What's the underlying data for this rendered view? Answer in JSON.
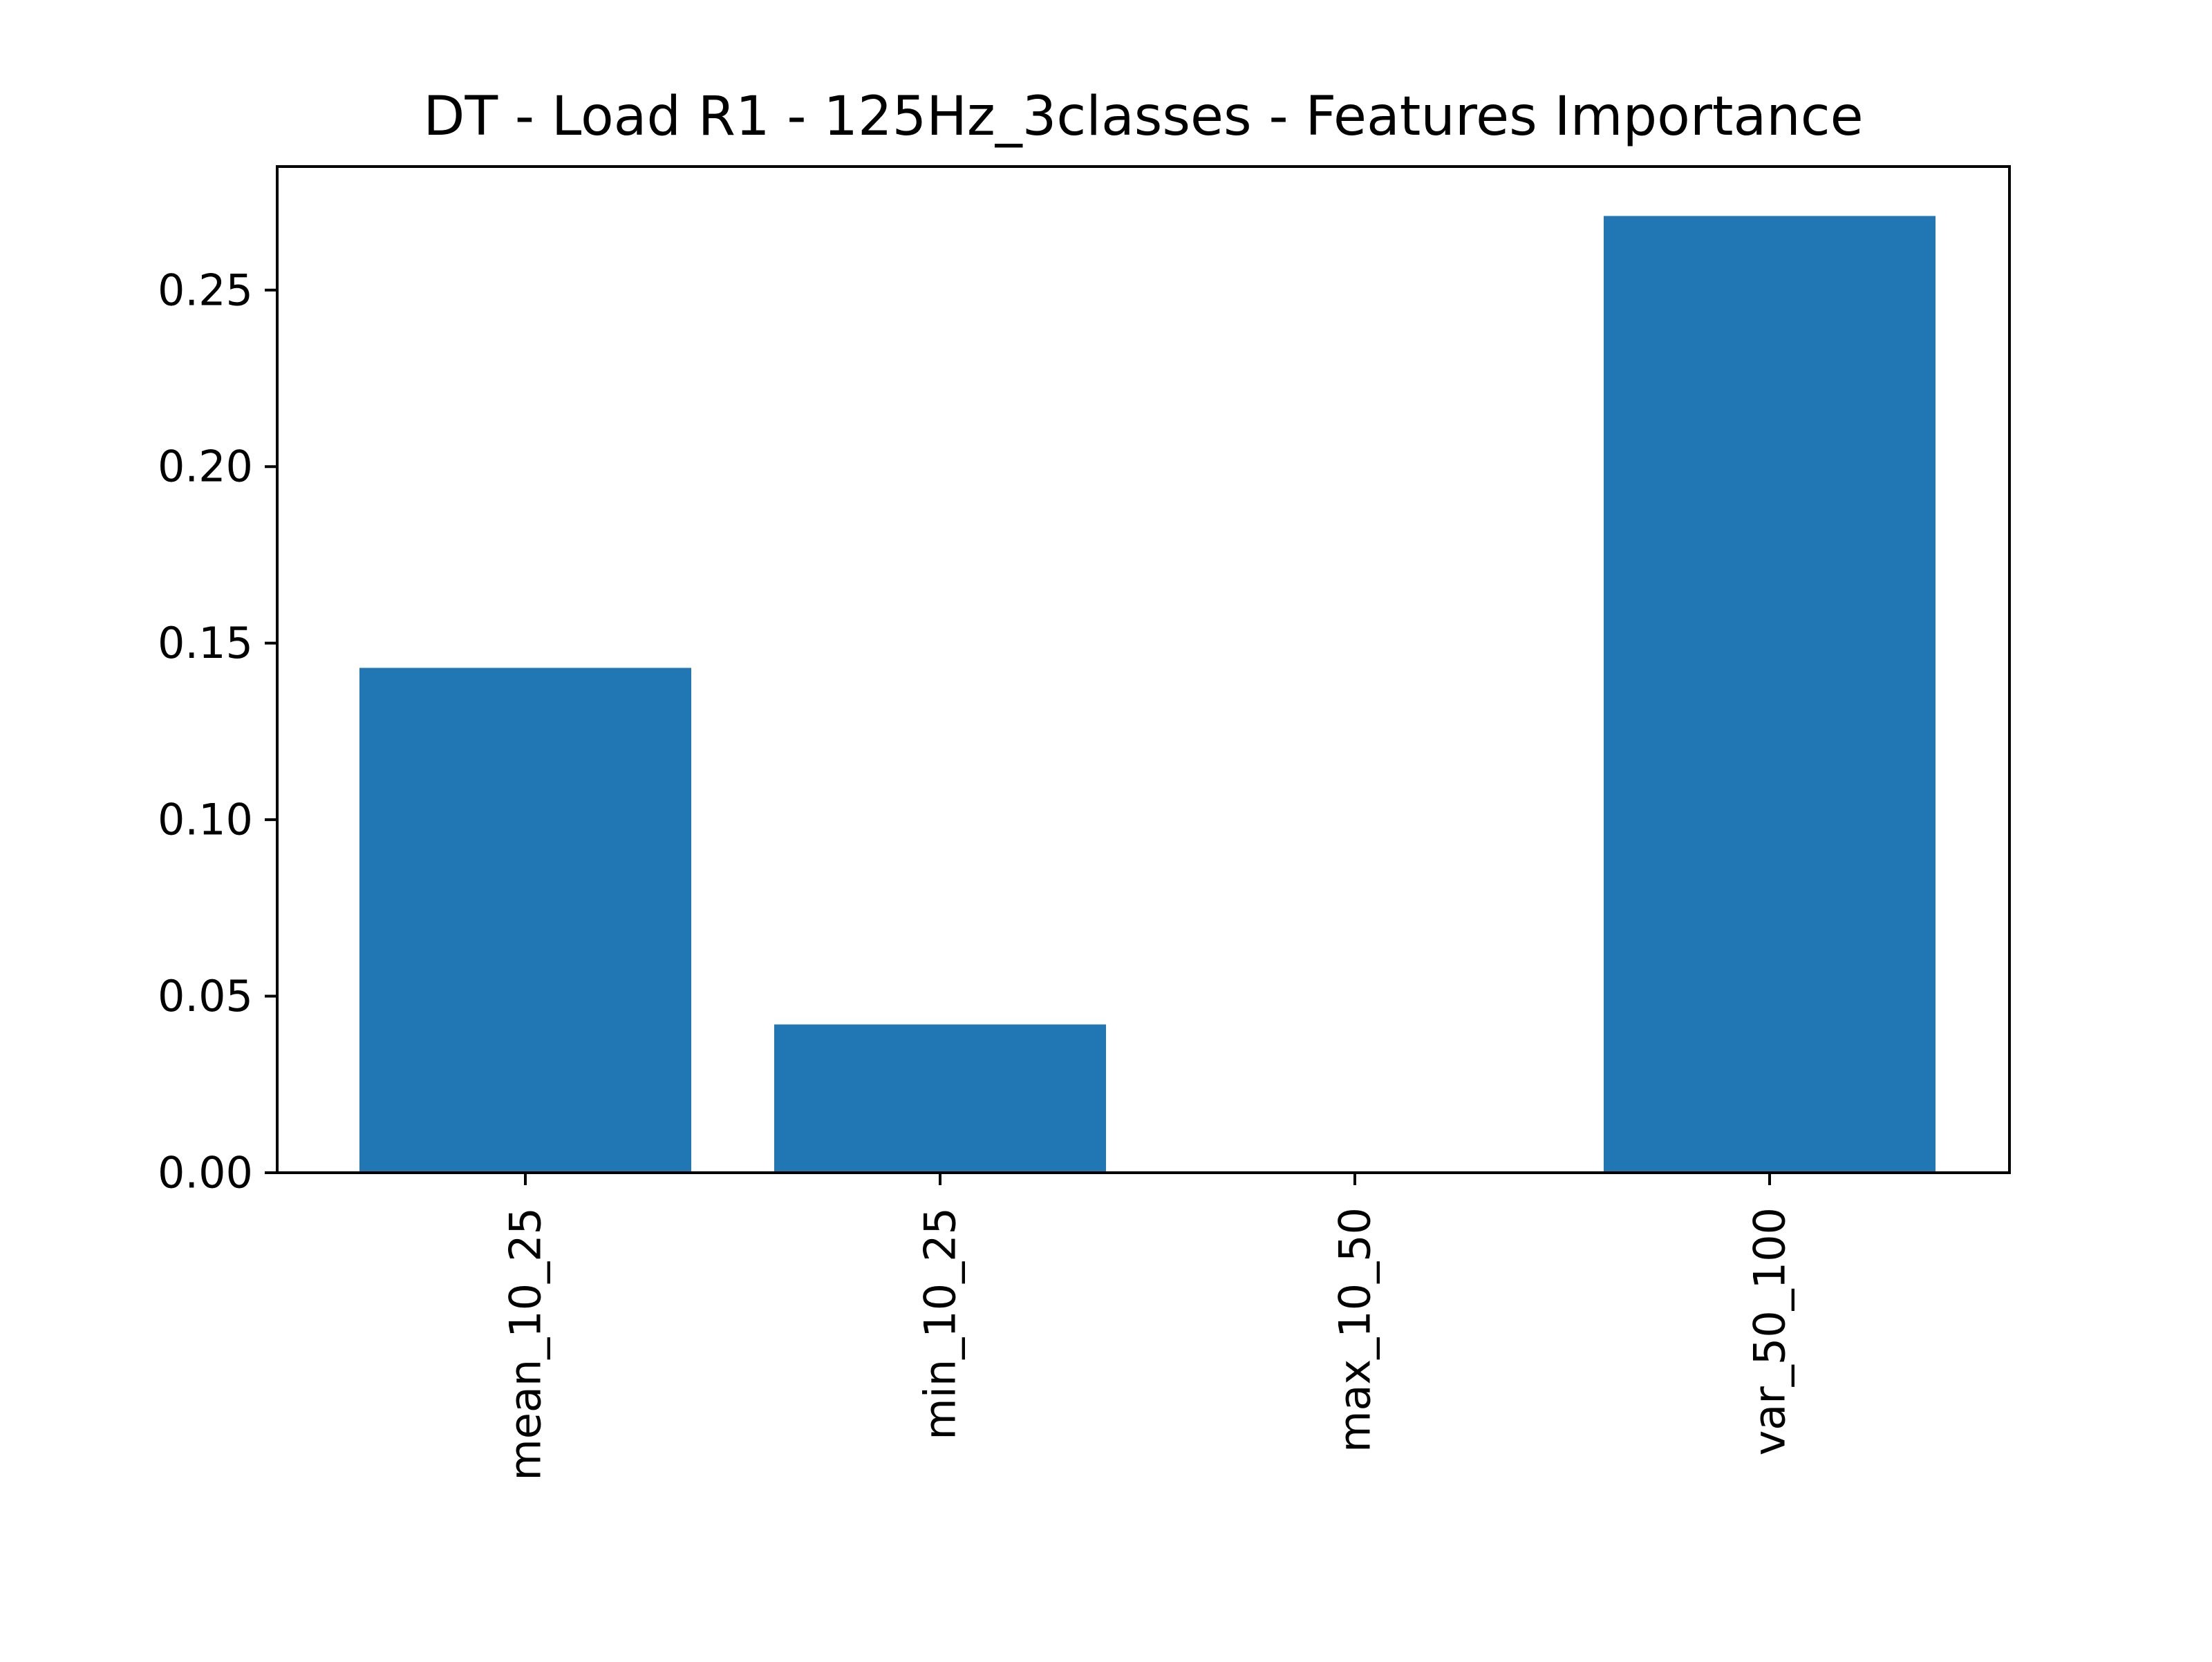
{
  "chart_data": {
    "type": "bar",
    "title": "DT - Load R1 - 125Hz_3classes - Features Importance",
    "xlabel": "",
    "ylabel": "",
    "categories": [
      "mean_10_25",
      "min_10_25",
      "max_10_50",
      "var_50_100"
    ],
    "values": [
      0.143,
      0.042,
      0.0,
      0.271
    ],
    "ylim": [
      0,
      0.285
    ],
    "yticks": [
      "0.00",
      "0.05",
      "0.10",
      "0.15",
      "0.20",
      "0.25"
    ],
    "grid": false,
    "legend": "none",
    "bar_color": "#2077b4",
    "x_tick_rotation": "vertical"
  }
}
